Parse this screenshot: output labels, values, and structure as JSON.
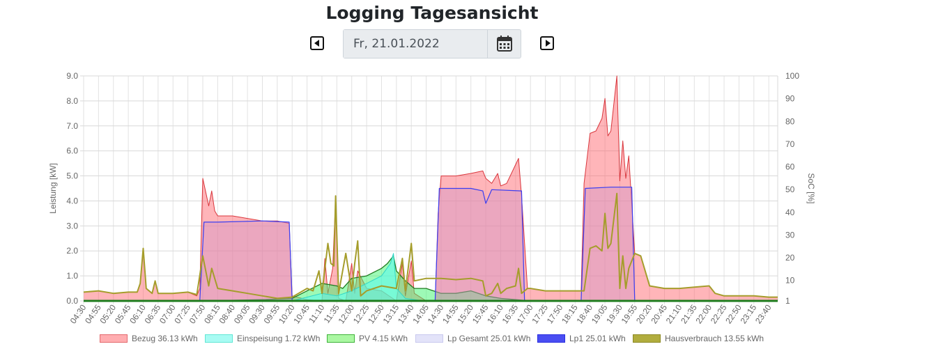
{
  "page": {
    "title": "Logging Tagesansicht",
    "date_value": "Fr, 21.01.2022"
  },
  "icons": {
    "prev": "caret-left-square-icon",
    "next": "caret-right-square-icon",
    "calendar": "calendar-icon"
  },
  "legend": [
    {
      "label": "Bezug 36.13 kWh",
      "fill": "#ffadb0",
      "stroke": "#e36a6e"
    },
    {
      "label": "Einspeisung 1.72 kWh",
      "fill": "#a8fbf3",
      "stroke": "#61e6d4"
    },
    {
      "label": "PV 4.15 kWh",
      "fill": "#aaf7a2",
      "stroke": "#3fb33a"
    },
    {
      "label": "Lp Gesamt 25.01 kWh",
      "fill": "#e3e3f9",
      "stroke": "#c9c9ee"
    },
    {
      "label": "Lp1 25.01 kWh",
      "fill": "#4a4ef2",
      "stroke": "#2a2ee0"
    },
    {
      "label": "Hausverbrauch 13.55 kWh",
      "fill": "#b1ad3e",
      "stroke": "#8d8a24"
    }
  ],
  "chart_data": {
    "type": "area",
    "ylabel": "Leistung [kW]",
    "y2label": "SoC [%]",
    "ylim": [
      0,
      9
    ],
    "y_ticks": [
      "0.0",
      "1.0",
      "2.0",
      "3.0",
      "4.0",
      "5.0",
      "6.0",
      "7.0",
      "8.0",
      "9.0"
    ],
    "y2lim": [
      1,
      100
    ],
    "y2_ticks": [
      "1",
      "10",
      "20",
      "30",
      "40",
      "50",
      "60",
      "70",
      "80",
      "90",
      "100"
    ],
    "xlim": [
      "04:30",
      "23:55"
    ],
    "x_tick_labels": [
      "04:30",
      "04:55",
      "05:20",
      "05:45",
      "06:10",
      "06:35",
      "07:00",
      "07:25",
      "07:50",
      "08:15",
      "08:40",
      "09:05",
      "09:30",
      "09:55",
      "10:20",
      "10:45",
      "11:10",
      "11:35",
      "12:00",
      "12:25",
      "12:50",
      "13:15",
      "13:40",
      "14:05",
      "14:30",
      "14:55",
      "15:20",
      "15:45",
      "16:10",
      "16:35",
      "17:00",
      "17:25",
      "17:50",
      "18:15",
      "18:40",
      "19:05",
      "19:30",
      "19:55",
      "20:20",
      "20:45",
      "21:10",
      "21:35",
      "22:00",
      "22:25",
      "22:50",
      "23:15",
      "23:40"
    ],
    "grid": true,
    "legend_position": "bottom",
    "series": [
      {
        "name": "Bezug 36.13 kWh",
        "color": "#ffadb0",
        "points": [
          [
            "04:30",
            0.35
          ],
          [
            "04:55",
            0.4
          ],
          [
            "05:20",
            0.3
          ],
          [
            "05:45",
            0.35
          ],
          [
            "06:00",
            0.35
          ],
          [
            "06:05",
            0.7
          ],
          [
            "06:10",
            2.1
          ],
          [
            "06:15",
            0.5
          ],
          [
            "06:25",
            0.3
          ],
          [
            "06:30",
            0.8
          ],
          [
            "06:35",
            0.3
          ],
          [
            "07:00",
            0.3
          ],
          [
            "07:25",
            0.35
          ],
          [
            "07:40",
            0.2
          ],
          [
            "07:45",
            0.5
          ],
          [
            "07:50",
            4.9
          ],
          [
            "08:00",
            3.8
          ],
          [
            "08:05",
            4.4
          ],
          [
            "08:10",
            3.6
          ],
          [
            "08:15",
            3.4
          ],
          [
            "08:40",
            3.4
          ],
          [
            "09:05",
            3.3
          ],
          [
            "09:30",
            3.2
          ],
          [
            "09:55",
            3.2
          ],
          [
            "10:15",
            3.1
          ],
          [
            "10:20",
            0.2
          ],
          [
            "10:45",
            0.05
          ],
          [
            "11:10",
            0.0
          ],
          [
            "11:15",
            1.7
          ],
          [
            "11:20",
            0.3
          ],
          [
            "11:28",
            1.3
          ],
          [
            "11:33",
            4.1
          ],
          [
            "11:38",
            0.1
          ],
          [
            "11:50",
            0.0
          ],
          [
            "12:00",
            1.5
          ],
          [
            "12:05",
            0.3
          ],
          [
            "12:10",
            1.2
          ],
          [
            "12:25",
            0.5
          ],
          [
            "12:50",
            0.4
          ],
          [
            "13:15",
            0.0
          ],
          [
            "13:25",
            1.5
          ],
          [
            "13:30",
            0.2
          ],
          [
            "13:40",
            1.6
          ],
          [
            "13:45",
            0.3
          ],
          [
            "14:05",
            0.0
          ],
          [
            "14:20",
            0.0
          ],
          [
            "14:25",
            3.5
          ],
          [
            "14:30",
            5.0
          ],
          [
            "14:55",
            5.0
          ],
          [
            "15:20",
            5.1
          ],
          [
            "15:40",
            5.2
          ],
          [
            "15:45",
            4.9
          ],
          [
            "15:55",
            4.7
          ],
          [
            "16:05",
            5.1
          ],
          [
            "16:10",
            4.6
          ],
          [
            "16:20",
            4.7
          ],
          [
            "16:30",
            5.2
          ],
          [
            "16:40",
            5.7
          ],
          [
            "16:45",
            4.2
          ],
          [
            "16:55",
            0.5
          ],
          [
            "17:00",
            0.5
          ],
          [
            "17:25",
            0.4
          ],
          [
            "17:50",
            0.4
          ],
          [
            "18:15",
            0.4
          ],
          [
            "18:25",
            0.4
          ],
          [
            "18:30",
            4.7
          ],
          [
            "18:40",
            6.7
          ],
          [
            "18:50",
            6.8
          ],
          [
            "19:00",
            7.3
          ],
          [
            "19:05",
            8.1
          ],
          [
            "19:10",
            6.6
          ],
          [
            "19:15",
            6.8
          ],
          [
            "19:25",
            9.0
          ],
          [
            "19:30",
            4.8
          ],
          [
            "19:35",
            6.4
          ],
          [
            "19:40",
            4.9
          ],
          [
            "19:45",
            5.8
          ],
          [
            "19:55",
            1.9
          ],
          [
            "20:05",
            1.8
          ],
          [
            "20:20",
            0.6
          ],
          [
            "20:45",
            0.5
          ],
          [
            "21:10",
            0.5
          ],
          [
            "21:35",
            0.55
          ],
          [
            "22:00",
            0.6
          ],
          [
            "22:10",
            0.3
          ],
          [
            "22:25",
            0.2
          ],
          [
            "22:50",
            0.2
          ],
          [
            "23:15",
            0.2
          ],
          [
            "23:40",
            0.15
          ],
          [
            "23:55",
            0.15
          ]
        ]
      },
      {
        "name": "Einspeisung 1.72 kWh",
        "color": "#a8fbf3",
        "points": [
          [
            "04:30",
            0.0
          ],
          [
            "10:20",
            0.0
          ],
          [
            "10:45",
            0.15
          ],
          [
            "11:10",
            0.3
          ],
          [
            "11:35",
            0.2
          ],
          [
            "12:00",
            0.4
          ],
          [
            "12:25",
            0.7
          ],
          [
            "12:50",
            1.0
          ],
          [
            "13:05",
            1.5
          ],
          [
            "13:10",
            1.9
          ],
          [
            "13:15",
            0.5
          ],
          [
            "13:30",
            0.1
          ],
          [
            "14:00",
            0.0
          ],
          [
            "23:55",
            0.0
          ]
        ]
      },
      {
        "name": "PV 4.15 kWh",
        "color": "#aaf7a2",
        "points": [
          [
            "04:30",
            0.0
          ],
          [
            "07:50",
            0.0
          ],
          [
            "09:30",
            0.05
          ],
          [
            "10:20",
            0.1
          ],
          [
            "10:45",
            0.4
          ],
          [
            "11:10",
            0.7
          ],
          [
            "11:35",
            0.6
          ],
          [
            "11:45",
            0.5
          ],
          [
            "12:00",
            0.9
          ],
          [
            "12:25",
            1.0
          ],
          [
            "12:50",
            1.3
          ],
          [
            "13:00",
            1.5
          ],
          [
            "13:10",
            1.8
          ],
          [
            "13:15",
            1.2
          ],
          [
            "13:30",
            0.8
          ],
          [
            "13:45",
            0.5
          ],
          [
            "14:05",
            0.5
          ],
          [
            "14:30",
            0.3
          ],
          [
            "14:55",
            0.3
          ],
          [
            "15:20",
            0.4
          ],
          [
            "15:45",
            0.2
          ],
          [
            "16:10",
            0.1
          ],
          [
            "16:35",
            0.05
          ],
          [
            "17:00",
            0.0
          ],
          [
            "23:55",
            0.0
          ]
        ]
      },
      {
        "name": "Lp Gesamt 25.01 kWh",
        "color": "#e3e3f9",
        "points": [
          [
            "04:30",
            0.0
          ],
          [
            "07:45",
            0.0
          ],
          [
            "07:52",
            3.15
          ],
          [
            "08:15",
            3.15
          ],
          [
            "09:30",
            3.2
          ],
          [
            "10:15",
            3.15
          ],
          [
            "10:20",
            0.0
          ],
          [
            "14:20",
            0.0
          ],
          [
            "14:27",
            4.5
          ],
          [
            "15:20",
            4.5
          ],
          [
            "15:40",
            4.4
          ],
          [
            "15:45",
            3.9
          ],
          [
            "15:55",
            4.45
          ],
          [
            "16:45",
            4.4
          ],
          [
            "16:50",
            0.0
          ],
          [
            "18:25",
            0.0
          ],
          [
            "18:32",
            4.5
          ],
          [
            "19:15",
            4.55
          ],
          [
            "19:50",
            4.55
          ],
          [
            "19:55",
            0.0
          ],
          [
            "23:55",
            0.0
          ]
        ]
      },
      {
        "name": "Lp1 25.01 kWh",
        "color": "#4a4ef2",
        "points": [
          [
            "04:30",
            0.0
          ],
          [
            "07:45",
            0.0
          ],
          [
            "07:52",
            3.15
          ],
          [
            "08:15",
            3.15
          ],
          [
            "09:30",
            3.2
          ],
          [
            "10:15",
            3.15
          ],
          [
            "10:20",
            0.0
          ],
          [
            "14:20",
            0.0
          ],
          [
            "14:27",
            4.5
          ],
          [
            "15:20",
            4.5
          ],
          [
            "15:40",
            4.4
          ],
          [
            "15:45",
            3.9
          ],
          [
            "15:55",
            4.45
          ],
          [
            "16:45",
            4.4
          ],
          [
            "16:50",
            0.0
          ],
          [
            "18:25",
            0.0
          ],
          [
            "18:32",
            4.5
          ],
          [
            "19:15",
            4.55
          ],
          [
            "19:50",
            4.55
          ],
          [
            "19:55",
            0.0
          ],
          [
            "23:55",
            0.0
          ]
        ]
      },
      {
        "name": "Hausverbrauch 13.55 kWh",
        "color": "#b1ad3e",
        "points": [
          [
            "04:30",
            0.35
          ],
          [
            "04:55",
            0.4
          ],
          [
            "05:20",
            0.3
          ],
          [
            "05:45",
            0.35
          ],
          [
            "06:00",
            0.35
          ],
          [
            "06:05",
            0.7
          ],
          [
            "06:10",
            2.1
          ],
          [
            "06:15",
            0.5
          ],
          [
            "06:25",
            0.3
          ],
          [
            "06:30",
            0.8
          ],
          [
            "06:35",
            0.3
          ],
          [
            "07:00",
            0.3
          ],
          [
            "07:25",
            0.35
          ],
          [
            "07:40",
            0.25
          ],
          [
            "07:50",
            1.8
          ],
          [
            "08:00",
            0.6
          ],
          [
            "08:05",
            1.3
          ],
          [
            "08:15",
            0.5
          ],
          [
            "08:40",
            0.4
          ],
          [
            "09:05",
            0.3
          ],
          [
            "09:30",
            0.2
          ],
          [
            "09:55",
            0.1
          ],
          [
            "10:20",
            0.15
          ],
          [
            "10:45",
            0.5
          ],
          [
            "10:55",
            0.4
          ],
          [
            "11:05",
            1.2
          ],
          [
            "11:10",
            0.3
          ],
          [
            "11:20",
            2.3
          ],
          [
            "11:25",
            1.5
          ],
          [
            "11:30",
            1.4
          ],
          [
            "11:33",
            4.2
          ],
          [
            "11:38",
            0.3
          ],
          [
            "11:50",
            1.9
          ],
          [
            "12:00",
            0.4
          ],
          [
            "12:05",
            1.5
          ],
          [
            "12:10",
            2.4
          ],
          [
            "12:15",
            0.2
          ],
          [
            "12:25",
            0.4
          ],
          [
            "12:50",
            0.6
          ],
          [
            "13:15",
            0.5
          ],
          [
            "13:25",
            1.7
          ],
          [
            "13:30",
            0.4
          ],
          [
            "13:40",
            2.3
          ],
          [
            "13:45",
            0.8
          ],
          [
            "14:05",
            0.9
          ],
          [
            "14:30",
            0.9
          ],
          [
            "14:55",
            0.85
          ],
          [
            "15:20",
            0.9
          ],
          [
            "15:40",
            0.8
          ],
          [
            "15:45",
            0.2
          ],
          [
            "15:55",
            0.3
          ],
          [
            "16:05",
            0.7
          ],
          [
            "16:10",
            0.3
          ],
          [
            "16:20",
            0.5
          ],
          [
            "16:35",
            0.6
          ],
          [
            "16:40",
            1.3
          ],
          [
            "16:45",
            0.3
          ],
          [
            "16:55",
            0.5
          ],
          [
            "17:00",
            0.5
          ],
          [
            "17:25",
            0.4
          ],
          [
            "17:50",
            0.4
          ],
          [
            "18:15",
            0.4
          ],
          [
            "18:30",
            0.4
          ],
          [
            "18:40",
            2.1
          ],
          [
            "18:50",
            2.2
          ],
          [
            "19:00",
            2.0
          ],
          [
            "19:05",
            3.5
          ],
          [
            "19:10",
            2.1
          ],
          [
            "19:15",
            2.3
          ],
          [
            "19:25",
            4.3
          ],
          [
            "19:30",
            0.5
          ],
          [
            "19:35",
            1.8
          ],
          [
            "19:40",
            0.5
          ],
          [
            "19:45",
            1.3
          ],
          [
            "19:55",
            1.9
          ],
          [
            "20:05",
            1.8
          ],
          [
            "20:20",
            0.6
          ],
          [
            "20:45",
            0.5
          ],
          [
            "21:10",
            0.5
          ],
          [
            "21:35",
            0.55
          ],
          [
            "22:00",
            0.6
          ],
          [
            "22:10",
            0.3
          ],
          [
            "22:25",
            0.2
          ],
          [
            "22:50",
            0.2
          ],
          [
            "23:15",
            0.2
          ],
          [
            "23:40",
            0.15
          ],
          [
            "23:55",
            0.15
          ]
        ]
      }
    ]
  }
}
